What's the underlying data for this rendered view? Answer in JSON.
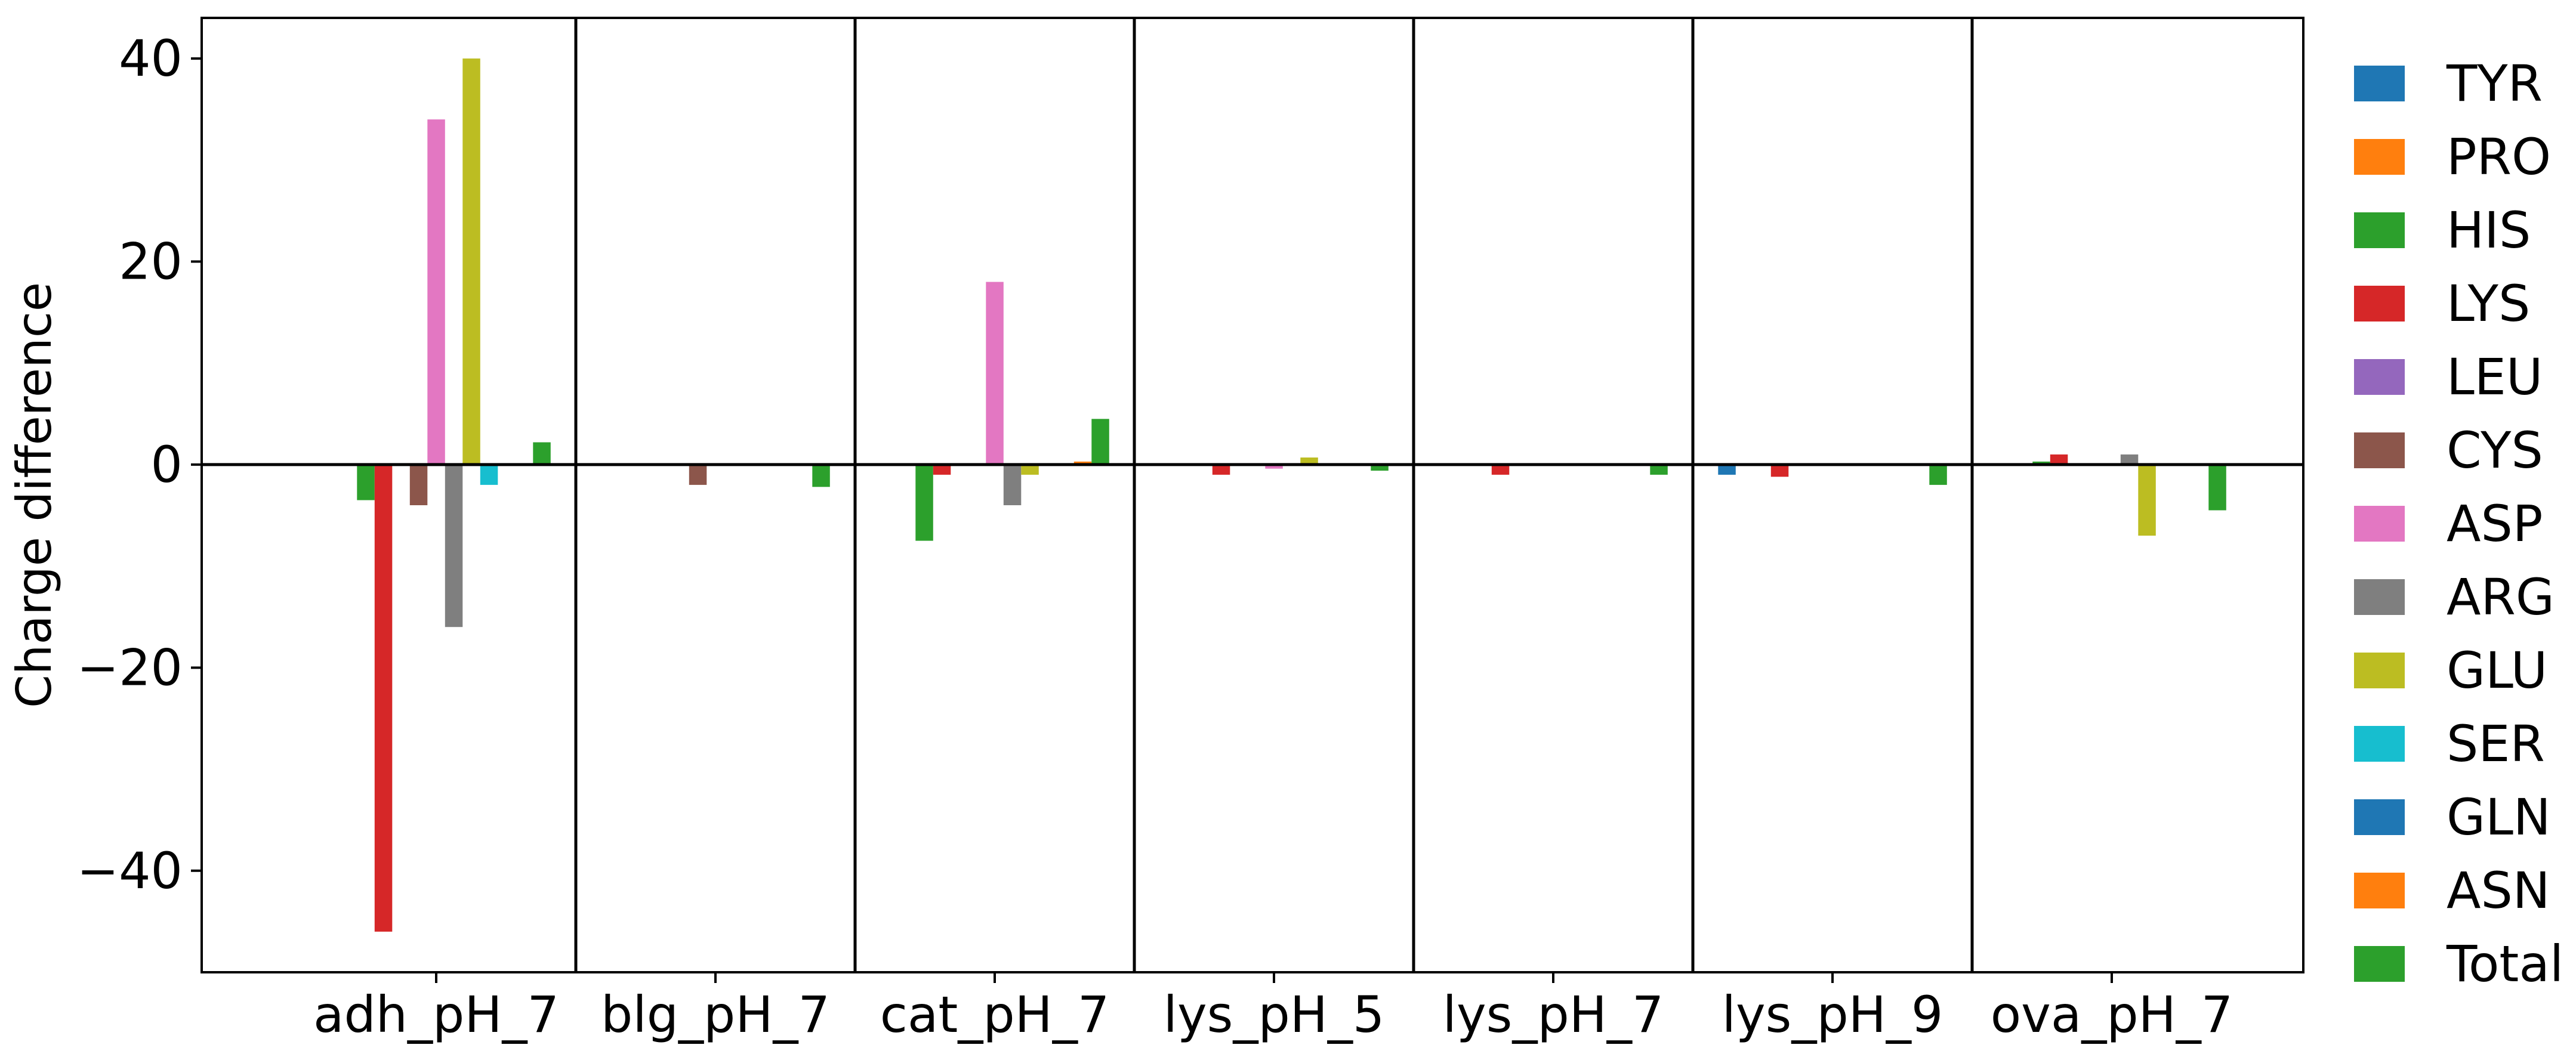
{
  "chart_data": {
    "type": "bar",
    "title": "",
    "xlabel": "",
    "ylabel": "Charge difference",
    "ylim": [
      -50,
      44
    ],
    "yticks": [
      40,
      20,
      0,
      -20,
      -40
    ],
    "ytick_labels": [
      "40",
      "20",
      "0",
      "−20",
      "−40"
    ],
    "grid": false,
    "legend_position": "outside-right",
    "categories": [
      "adh_pH_7",
      "blg_pH_7",
      "cat_pH_7",
      "lys_pH_5",
      "lys_pH_7",
      "lys_pH_9",
      "ova_pH_7"
    ],
    "series": [
      {
        "name": "TYR",
        "color": "#1f77b4",
        "values": [
          0,
          0,
          0,
          0,
          0,
          -1.0,
          0
        ]
      },
      {
        "name": "PRO",
        "color": "#ff7f0e",
        "values": [
          0,
          0,
          0,
          0,
          0,
          0,
          0
        ]
      },
      {
        "name": "HIS",
        "color": "#2ca02c",
        "values": [
          -3.5,
          0,
          -7.5,
          0,
          0,
          0,
          0.3
        ]
      },
      {
        "name": "LYS",
        "color": "#d62728",
        "values": [
          -46,
          0,
          -1.0,
          -1.0,
          -1.0,
          -1.2,
          1.0
        ]
      },
      {
        "name": "LEU",
        "color": "#9467bd",
        "values": [
          0,
          0,
          0,
          0,
          0,
          0,
          0
        ]
      },
      {
        "name": "CYS",
        "color": "#8c564b",
        "values": [
          -4.0,
          -2.0,
          0,
          0,
          0,
          0,
          0
        ]
      },
      {
        "name": "ASP",
        "color": "#e377c2",
        "values": [
          34,
          0,
          18,
          -0.4,
          0,
          0,
          0
        ]
      },
      {
        "name": "ARG",
        "color": "#7f7f7f",
        "values": [
          -16,
          0,
          -4.0,
          0,
          0,
          0,
          1.0
        ]
      },
      {
        "name": "GLU",
        "color": "#bcbd22",
        "values": [
          40,
          0,
          -1.0,
          0.7,
          0,
          0,
          -7.0
        ]
      },
      {
        "name": "SER",
        "color": "#17becf",
        "values": [
          -2.0,
          0,
          0,
          0,
          0,
          0,
          0
        ]
      },
      {
        "name": "GLN",
        "color": "#1f77b4",
        "values": [
          0,
          0,
          0,
          0,
          0,
          0,
          0
        ]
      },
      {
        "name": "ASN",
        "color": "#ff7f0e",
        "values": [
          0,
          0,
          0.3,
          0,
          0,
          0,
          0
        ]
      },
      {
        "name": "Total",
        "color": "#2ca02c",
        "values": [
          2.2,
          -2.2,
          4.5,
          -0.6,
          -1.0,
          -2.0,
          -4.5
        ]
      }
    ]
  }
}
